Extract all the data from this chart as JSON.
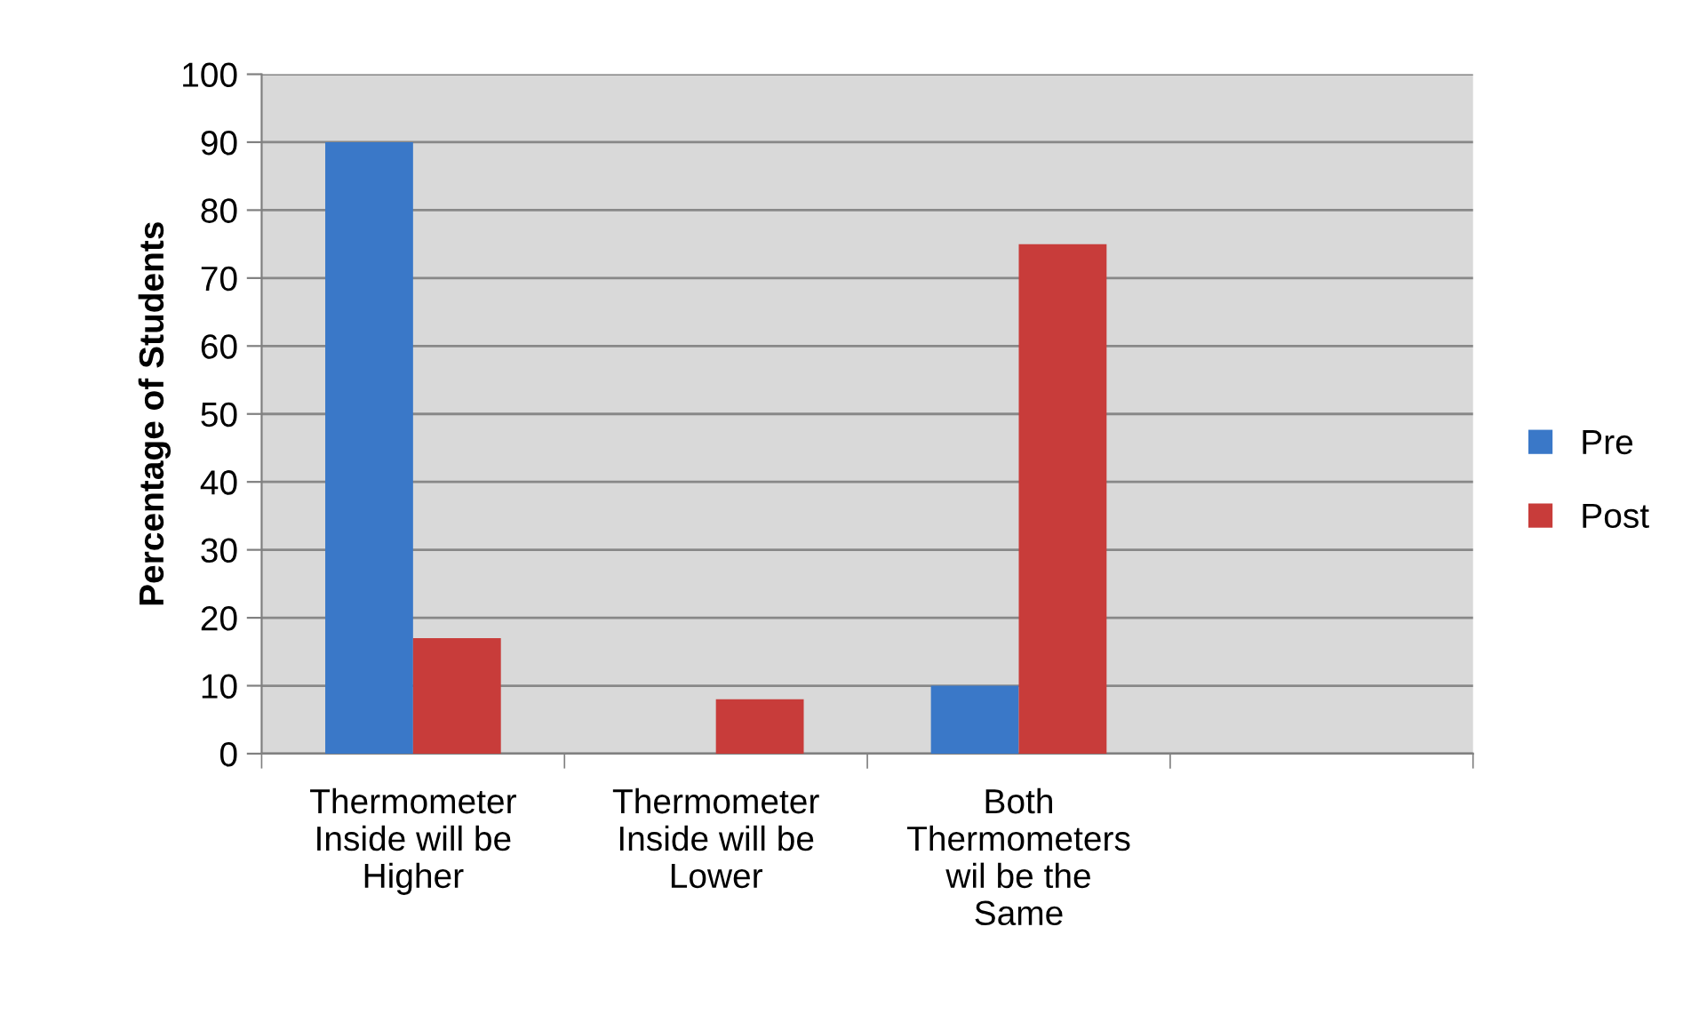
{
  "chart_data": {
    "type": "bar",
    "ylabel": "Percentage of Students",
    "categories": [
      "Thermometer\nInside will be\nHigher",
      "Thermometer\nInside will be\nLower",
      "Both\nThermometers\nwil be the\nSame",
      null
    ],
    "series": [
      {
        "name": "Pre",
        "color": "#3a78c8",
        "values": [
          90,
          0,
          10,
          null
        ]
      },
      {
        "name": "Post",
        "color": "#c83c3a",
        "values": [
          17,
          8,
          75,
          null
        ]
      }
    ],
    "ylim": [
      0,
      100
    ],
    "yticks": [
      0,
      10,
      20,
      30,
      40,
      50,
      60,
      70,
      80,
      90,
      100
    ],
    "grid": "y",
    "legend": "right"
  }
}
